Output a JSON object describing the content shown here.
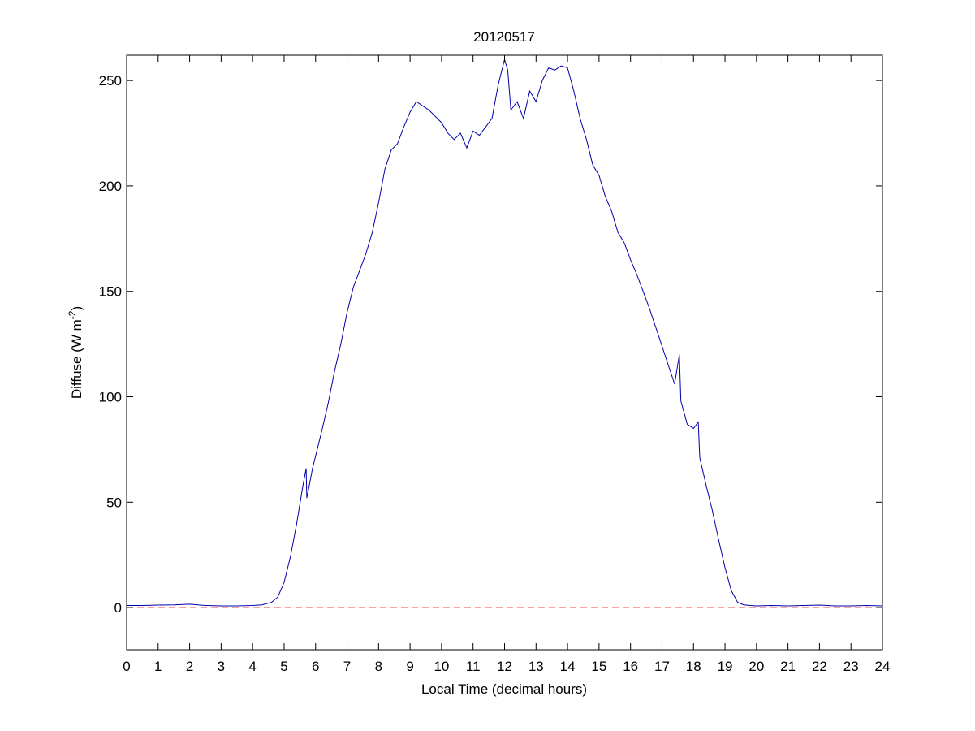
{
  "chart_data": {
    "type": "line",
    "title": "20120517",
    "xlabel": "Local Time (decimal hours)",
    "ylabel": "Diffuse (W m",
    "ylabel_sup": "-2",
    "ylabel_close": ")",
    "xlim": [
      0,
      24
    ],
    "ylim": [
      -20,
      262
    ],
    "xticks": [
      0,
      1,
      2,
      3,
      4,
      5,
      6,
      7,
      8,
      9,
      10,
      11,
      12,
      13,
      14,
      15,
      16,
      17,
      18,
      19,
      20,
      21,
      22,
      23,
      24
    ],
    "yticks": [
      0,
      50,
      100,
      150,
      200,
      250
    ],
    "grid": false,
    "series": [
      {
        "color": "#0000aa",
        "style": "solid",
        "x": [
          0,
          0.5,
          1,
          1.5,
          2,
          2.5,
          3,
          3.5,
          4,
          4.3,
          4.6,
          4.8,
          5.0,
          5.2,
          5.4,
          5.6,
          5.7,
          5.72,
          5.8,
          5.9,
          6.0,
          6.2,
          6.4,
          6.6,
          6.8,
          7.0,
          7.2,
          7.4,
          7.6,
          7.8,
          8.0,
          8.2,
          8.4,
          8.6,
          8.8,
          9.0,
          9.2,
          9.4,
          9.6,
          9.8,
          10.0,
          10.2,
          10.4,
          10.6,
          10.8,
          11.0,
          11.2,
          11.4,
          11.6,
          11.8,
          12.0,
          12.1,
          12.2,
          12.4,
          12.6,
          12.8,
          13.0,
          13.2,
          13.4,
          13.6,
          13.8,
          14.0,
          14.2,
          14.4,
          14.6,
          14.8,
          15.0,
          15.2,
          15.4,
          15.6,
          15.8,
          16.0,
          16.2,
          16.4,
          16.6,
          16.8,
          17.0,
          17.2,
          17.4,
          17.55,
          17.6,
          17.8,
          18.0,
          18.15,
          18.2,
          18.4,
          18.6,
          18.8,
          19.0,
          19.2,
          19.4,
          19.6,
          19.8,
          20.0,
          20.5,
          21,
          21.5,
          22,
          22.5,
          23,
          23.5,
          24
        ],
        "y": [
          1.0,
          1.0,
          1.2,
          1.3,
          1.6,
          1.0,
          0.8,
          0.8,
          1.0,
          1.3,
          2.5,
          5,
          12,
          24,
          40,
          58,
          66,
          52,
          58,
          66,
          72,
          84,
          97,
          112,
          125,
          140,
          152,
          160,
          168,
          178,
          192,
          208,
          217,
          220,
          228,
          235,
          240,
          238,
          236,
          233,
          230,
          225,
          222,
          225,
          218,
          226,
          224,
          228,
          232,
          248,
          260,
          255,
          236,
          240,
          232,
          245,
          240,
          250,
          256,
          255,
          257,
          256,
          245,
          232,
          222,
          210,
          205,
          195,
          188,
          178,
          173,
          165,
          158,
          150,
          142,
          133,
          124,
          115,
          106,
          120,
          98,
          87,
          85,
          88,
          71,
          58,
          46,
          32,
          19,
          8,
          2.5,
          1.3,
          1.0,
          0.8,
          1.0,
          0.8,
          1.0,
          1.2,
          0.8,
          0.8,
          1.0,
          0.8
        ]
      },
      {
        "color": "#ff0000",
        "style": "dashed",
        "x": [
          0,
          24
        ],
        "y": [
          0,
          0
        ]
      }
    ]
  }
}
